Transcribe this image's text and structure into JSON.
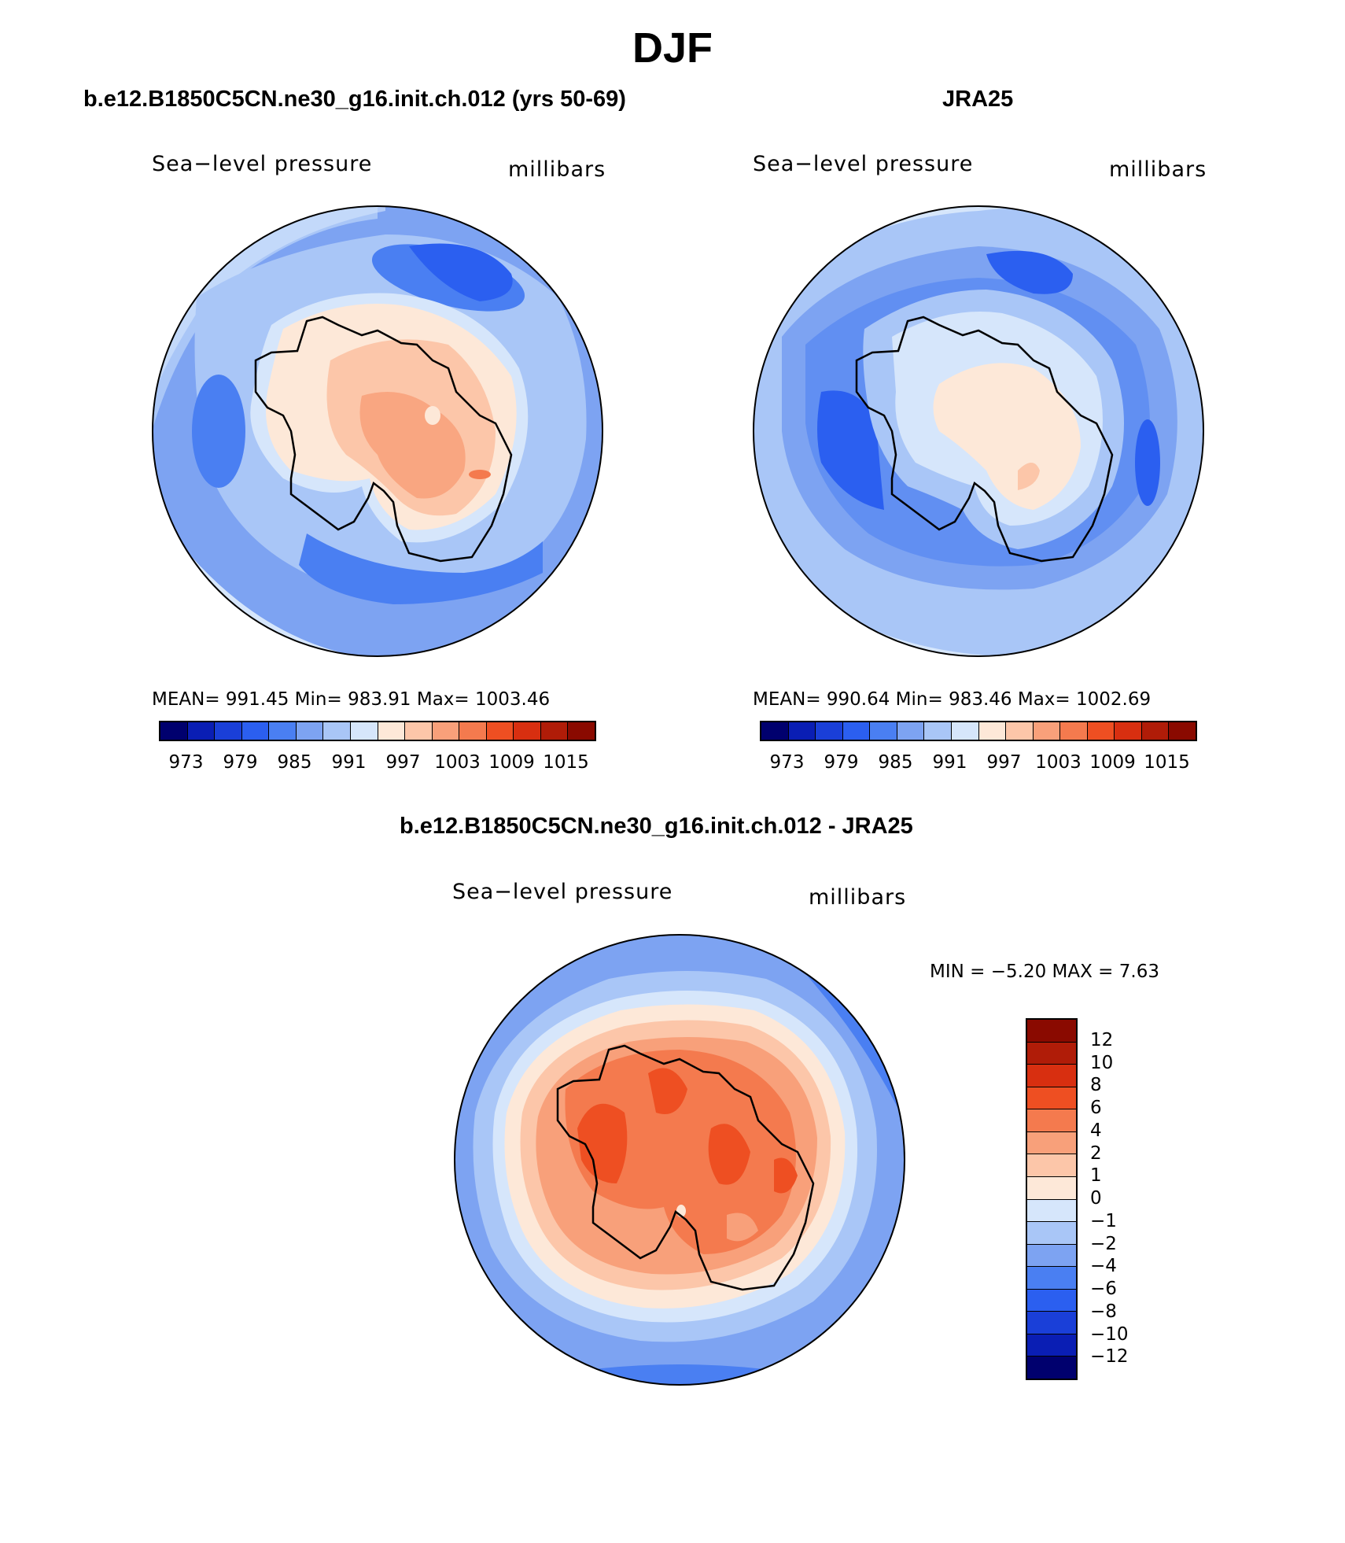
{
  "title": "DJF",
  "panels": [
    {
      "title": "b.e12.B1850C5CN.ne30_g16.init.ch.012 (yrs 50-69)",
      "variable": "Sea−level pressure",
      "units": "millibars",
      "stats": "MEAN=  991.45    Min=  983.91    Max=  1003.46",
      "colorbar_ticks": [
        "973",
        "979",
        "985",
        "991",
        "997",
        "1003",
        "1009",
        "1015"
      ]
    },
    {
      "title": "JRA25",
      "variable": "Sea−level pressure",
      "units": "millibars",
      "stats": "MEAN=  990.64    Min=  983.46    Max=  1002.69",
      "colorbar_ticks": [
        "973",
        "979",
        "985",
        "991",
        "997",
        "1003",
        "1009",
        "1015"
      ]
    }
  ],
  "diff": {
    "title": "b.e12.B1850C5CN.ne30_g16.init.ch.012 - JRA25",
    "variable": "Sea−level pressure",
    "units": "millibars",
    "stats": "MIN =    −5.20  MAX =     7.63",
    "colorbar_labels": [
      "12",
      "10",
      "8",
      "6",
      "4",
      "2",
      "1",
      "0",
      "−1",
      "−2",
      "−4",
      "−6",
      "−8",
      "−10",
      "−12"
    ]
  },
  "colors": {
    "abs_scale": [
      "#00006e",
      "#0a1eb4",
      "#1a3fd8",
      "#2b5ff0",
      "#4a7ff2",
      "#7da3f2",
      "#a9c6f7",
      "#d6e6fb",
      "#fde8d8",
      "#fcc6a9",
      "#f8a07a",
      "#f47a4e",
      "#ee4f22",
      "#d82f10",
      "#b01c08",
      "#8a0a00"
    ],
    "diff_scale": [
      "#8a0a00",
      "#b01c08",
      "#d82f10",
      "#ee4f22",
      "#f47a4e",
      "#f8a07a",
      "#fcc6a9",
      "#fde8d8",
      "#d6e6fb",
      "#a9c6f7",
      "#7da3f2",
      "#4a7ff2",
      "#2b5ff0",
      "#1a3fd8",
      "#0a1eb4",
      "#00006e"
    ]
  }
}
